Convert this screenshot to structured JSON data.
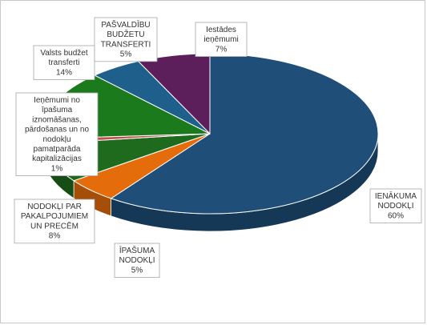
{
  "chart_data": {
    "type": "pie",
    "title": "",
    "slices": [
      {
        "label_lines": [
          "IENĀKUMA",
          "NODOKĻI",
          "60%"
        ],
        "value": 60,
        "color": "#1f4e79"
      },
      {
        "label_lines": [
          "ĪPAŠUMA",
          "NODOKĻI",
          "5%"
        ],
        "value": 5,
        "color": "#e46c0a"
      },
      {
        "label_lines": [
          "NODOKĻI PAR",
          "PAKALPOJUMIEM",
          "UN PRECĒM",
          "8%"
        ],
        "value": 8,
        "color": "#1e6b1e"
      },
      {
        "label_lines": [
          "Ieņēmumi no",
          "īpašuma",
          "iznomāšanas,",
          "pārdošanas un no",
          "nodokļu",
          "pamatparāda",
          "kapitalizācijas",
          "1%"
        ],
        "value": 1,
        "color": "#c0504d"
      },
      {
        "label_lines": [
          "Valsts budžet",
          "transferti",
          "14%"
        ],
        "value": 14,
        "color": "#1b7a1b"
      },
      {
        "label_lines": [
          "PAŠVALDĪBU",
          "BUDŽETU",
          "TRANSFERTI",
          "5%"
        ],
        "value": 5,
        "color": "#1f5f8b"
      },
      {
        "label_lines": [
          "Iestādes",
          "ieņēmumi",
          "7%"
        ],
        "value": 7,
        "color": "#5c1f5c"
      }
    ]
  }
}
